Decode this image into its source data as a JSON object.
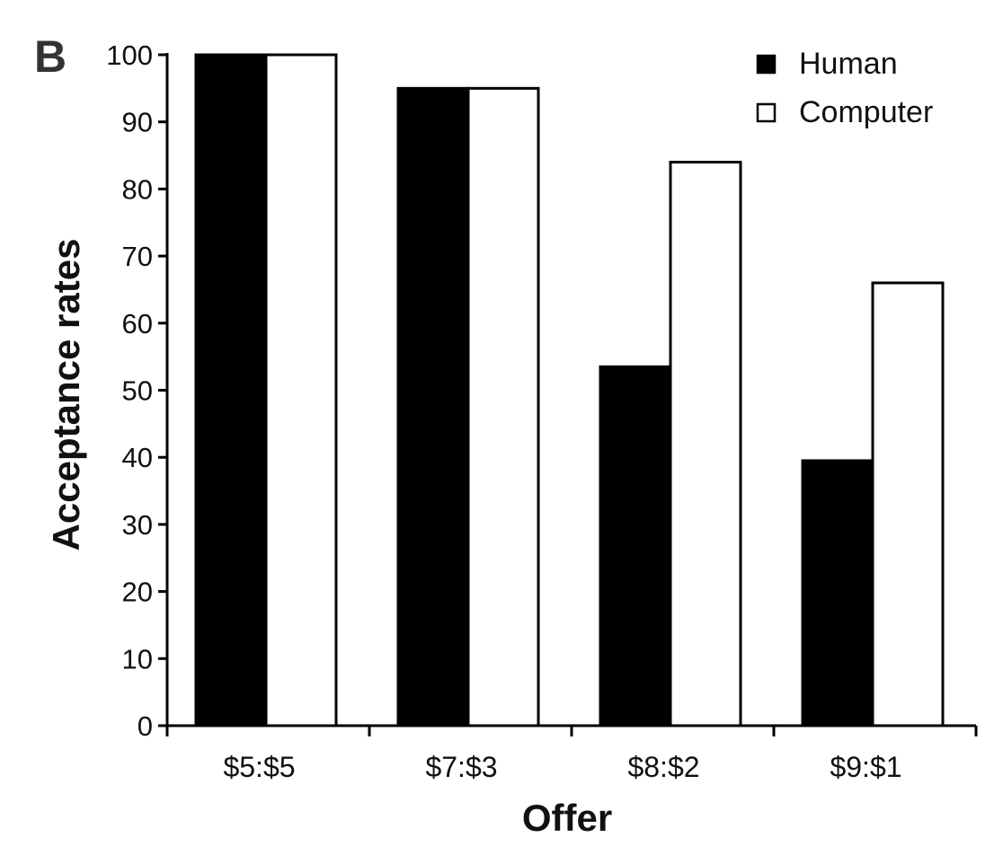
{
  "panel_label": "B",
  "chart_data": {
    "type": "bar",
    "title": "",
    "xlabel": "Offer",
    "ylabel": "Acceptance rates",
    "categories": [
      "$5:$5",
      "$7:$3",
      "$8:$2",
      "$9:$1"
    ],
    "series": [
      {
        "name": "Human",
        "color": "#000000",
        "values": [
          100,
          95,
          53.5,
          39.5
        ]
      },
      {
        "name": "Computer",
        "color": "#ffffff",
        "values": [
          100,
          95,
          84,
          66
        ]
      }
    ],
    "ylim": [
      0,
      100
    ],
    "yticks": [
      0,
      10,
      20,
      30,
      40,
      50,
      60,
      70,
      80,
      90,
      100
    ],
    "grid": false,
    "legend_position": "top-right"
  }
}
